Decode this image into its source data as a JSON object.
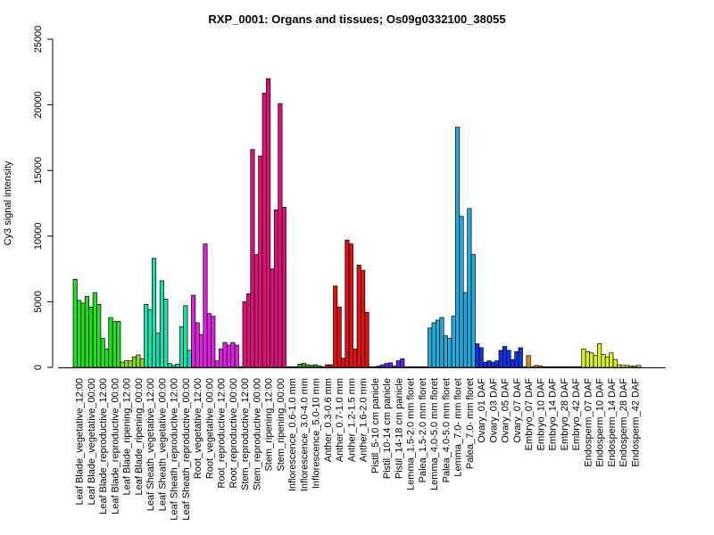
{
  "chart_data": {
    "type": "bar",
    "title": "RXP_0001: Organs and tissues; Os09g0332100_38055",
    "ylabel": "Cy3 signal intensity",
    "xlabel": "",
    "ylim": [
      0,
      25000
    ],
    "yticks": [
      0,
      5000,
      10000,
      15000,
      20000,
      25000
    ],
    "grid": false,
    "legend": "none",
    "groups": [
      {
        "label": "Leaf Blade_vegetative_12:00",
        "color": "#22dd22",
        "values": [
          6700,
          5100,
          4900
        ]
      },
      {
        "label": "Leaf Blade_vegetative_00:00",
        "color": "#22dd22",
        "values": [
          5400,
          4600,
          5700
        ]
      },
      {
        "label": "Leaf Blade_reproductive_12:00",
        "color": "#22dd22",
        "values": [
          4800,
          2200,
          1400
        ]
      },
      {
        "label": "Leaf Blade_reproductive_00:00",
        "color": "#22dd22",
        "values": [
          3800,
          3500,
          3500
        ]
      },
      {
        "label": "Leaf Blade_ripening_12:00",
        "color": "#88dd22",
        "values": [
          400,
          500,
          500
        ]
      },
      {
        "label": "Leaf Blade_ripening_00:00",
        "color": "#88dd22",
        "values": [
          800,
          950,
          650
        ]
      },
      {
        "label": "Leaf Sheath_vegetative_12:00",
        "color": "#22ddaa",
        "values": [
          4800,
          4400,
          8300
        ]
      },
      {
        "label": "Leaf Sheath_vegetative_00:00",
        "color": "#22ddaa",
        "values": [
          2600,
          6600,
          5200
        ]
      },
      {
        "label": "Leaf Sheath_reproductive_12:00",
        "color": "#22ddaa",
        "values": [
          300,
          150,
          250
        ]
      },
      {
        "label": "Leaf Sheath_reproductive_00:00",
        "color": "#22ddaa",
        "values": [
          3100,
          4700,
          1300
        ]
      },
      {
        "label": "Root_vegetative_12:00",
        "color": "#dd22dd",
        "values": [
          5500,
          3400,
          2500
        ]
      },
      {
        "label": "Root_vegetative_00:00",
        "color": "#dd22dd",
        "values": [
          9400,
          4100,
          3900
        ]
      },
      {
        "label": "Root_reproductive_12:00",
        "color": "#dd22dd",
        "values": [
          500,
          1400,
          1900
        ]
      },
      {
        "label": "Root_reproductive_00:00",
        "color": "#dd22dd",
        "values": [
          1700,
          1900,
          1700
        ]
      },
      {
        "label": "Stem_reproductive_12:00",
        "color": "#dd1177",
        "values": [
          50,
          5000,
          5600
        ]
      },
      {
        "label": "Stem_reproductive_00:00",
        "color": "#dd1177",
        "values": [
          16600,
          8600,
          16100
        ]
      },
      {
        "label": "Stem_ripening_12:00",
        "color": "#dd1177",
        "values": [
          20900,
          22000,
          7500
        ]
      },
      {
        "label": "Stem_ripening_00:00",
        "color": "#dd1177",
        "values": [
          12000,
          20100,
          12200
        ]
      },
      {
        "label": "Inflorescence_0.6-1.0 mm",
        "color": "#22aa22",
        "values": [
          50,
          50,
          50
        ]
      },
      {
        "label": "Inflorescence_3.0-4.0 mm",
        "color": "#22aa22",
        "values": [
          250,
          300,
          200
        ]
      },
      {
        "label": "Inflorescence_5.0-10 mm",
        "color": "#22aa22",
        "values": [
          150,
          200,
          100
        ]
      },
      {
        "label": "Anther_0.3-0.6 mm",
        "color": "#dd1111",
        "values": [
          50,
          200,
          200
        ]
      },
      {
        "label": "Anther_0.7-1.0 mm",
        "color": "#dd1111",
        "values": [
          6200,
          4600,
          700
        ]
      },
      {
        "label": "Anther_1.2-1.5 mm",
        "color": "#dd1111",
        "values": [
          9700,
          9400,
          1400
        ]
      },
      {
        "label": "Anther_1.6-2.0 mm",
        "color": "#dd1111",
        "values": [
          7800,
          7400,
          4200
        ]
      },
      {
        "label": "Pistil_5-10 cm panicle",
        "color": "#6622dd",
        "values": [
          50,
          50,
          100
        ]
      },
      {
        "label": "Pistil_10-14 cm panicle",
        "color": "#6622dd",
        "values": [
          200,
          300,
          350
        ]
      },
      {
        "label": "Pistil_14-18 cm panicle",
        "color": "#6622dd",
        "values": [
          100,
          500,
          650
        ]
      },
      {
        "label": "Lemma_1.5-2.0 mm floret",
        "color": "#22aadd",
        "values": [
          50,
          50,
          50
        ]
      },
      {
        "label": "Palea_1.5-2.0 mm floret",
        "color": "#22aadd",
        "values": [
          50,
          50,
          50
        ]
      },
      {
        "label": "Lemma_4.0-5.0 mm floret",
        "color": "#22aadd",
        "values": [
          3000,
          3400,
          3600
        ]
      },
      {
        "label": "Palea_4.0-5.0 mm floret",
        "color": "#22aadd",
        "values": [
          3800,
          2400,
          2200
        ]
      },
      {
        "label": "Lemma_7.0- mm floret",
        "color": "#22aadd",
        "values": [
          3900,
          18300,
          11500
        ]
      },
      {
        "label": "Palea_7.0- mm floret",
        "color": "#22aadd",
        "values": [
          5700,
          12100,
          8600
        ]
      },
      {
        "label": "Ovary_01 DAF",
        "color": "#1133dd",
        "values": [
          1800,
          1500,
          400
        ]
      },
      {
        "label": "Ovary_03 DAF",
        "color": "#1133dd",
        "values": [
          500,
          400,
          500
        ]
      },
      {
        "label": "Ovary_05 DAF",
        "color": "#1133dd",
        "values": [
          1300,
          1600,
          1300
        ]
      },
      {
        "label": "Ovary_07 DAF",
        "color": "#1133dd",
        "values": [
          600,
          1200,
          1500
        ]
      },
      {
        "label": "Embryo_07 DAF",
        "color": "#dd8811",
        "values": [
          50,
          900,
          50
        ]
      },
      {
        "label": "Embryo_10 DAF",
        "color": "#dd8811",
        "values": [
          150,
          100,
          50
        ]
      },
      {
        "label": "Embryo_14 DAF",
        "color": "#dd8811",
        "values": [
          50,
          50,
          50
        ]
      },
      {
        "label": "Embryo_28 DAF",
        "color": "#dd8811",
        "values": [
          50,
          50,
          50
        ]
      },
      {
        "label": "Embryo_42 DAF",
        "color": "#dd8811",
        "values": [
          50,
          50,
          50
        ]
      },
      {
        "label": "Endosperm_07 DAF",
        "color": "#ddee22",
        "values": [
          1400,
          1200,
          1100
        ]
      },
      {
        "label": "Endosperm_10 DAF",
        "color": "#ddee22",
        "values": [
          900,
          1800,
          1000
        ]
      },
      {
        "label": "Endosperm_14 DAF",
        "color": "#ddee22",
        "values": [
          800,
          1100,
          600
        ]
      },
      {
        "label": "Endosperm_28 DAF",
        "color": "#ddee22",
        "values": [
          200,
          150,
          150
        ]
      },
      {
        "label": "Endosperm_42 DAF",
        "color": "#ddee22",
        "values": [
          100,
          100,
          150
        ]
      }
    ]
  }
}
